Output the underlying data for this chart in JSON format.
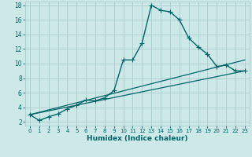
{
  "title": "",
  "xlabel": "Humidex (Indice chaleur)",
  "ylabel": "",
  "background_color": "#cde8e8",
  "grid_color": "#aacccc",
  "line_color": "#006666",
  "xlim": [
    -0.5,
    23.5
  ],
  "ylim": [
    1.5,
    18.5
  ],
  "xticks": [
    0,
    1,
    2,
    3,
    4,
    5,
    6,
    7,
    8,
    9,
    10,
    11,
    12,
    13,
    14,
    15,
    16,
    17,
    18,
    19,
    20,
    21,
    22,
    23
  ],
  "yticks": [
    2,
    4,
    6,
    8,
    10,
    12,
    14,
    16,
    18
  ],
  "series": [
    {
      "x": [
        0,
        1,
        2,
        3,
        4,
        5,
        6,
        7,
        8,
        9,
        10,
        11,
        12,
        13,
        14,
        15,
        16,
        17,
        18,
        19,
        20,
        21,
        22,
        23
      ],
      "y": [
        3.0,
        2.2,
        2.7,
        3.1,
        3.8,
        4.3,
        5.0,
        4.9,
        5.3,
        6.3,
        10.5,
        10.5,
        12.8,
        18.0,
        17.3,
        17.1,
        16.0,
        13.5,
        12.3,
        11.3,
        9.6,
        9.8,
        9.0,
        9.0
      ],
      "marker": "+",
      "linewidth": 1.0
    },
    {
      "x": [
        0,
        23
      ],
      "y": [
        3.0,
        10.5
      ],
      "marker": null,
      "linewidth": 0.9
    },
    {
      "x": [
        0,
        23
      ],
      "y": [
        3.0,
        9.0
      ],
      "marker": null,
      "linewidth": 0.9
    }
  ]
}
